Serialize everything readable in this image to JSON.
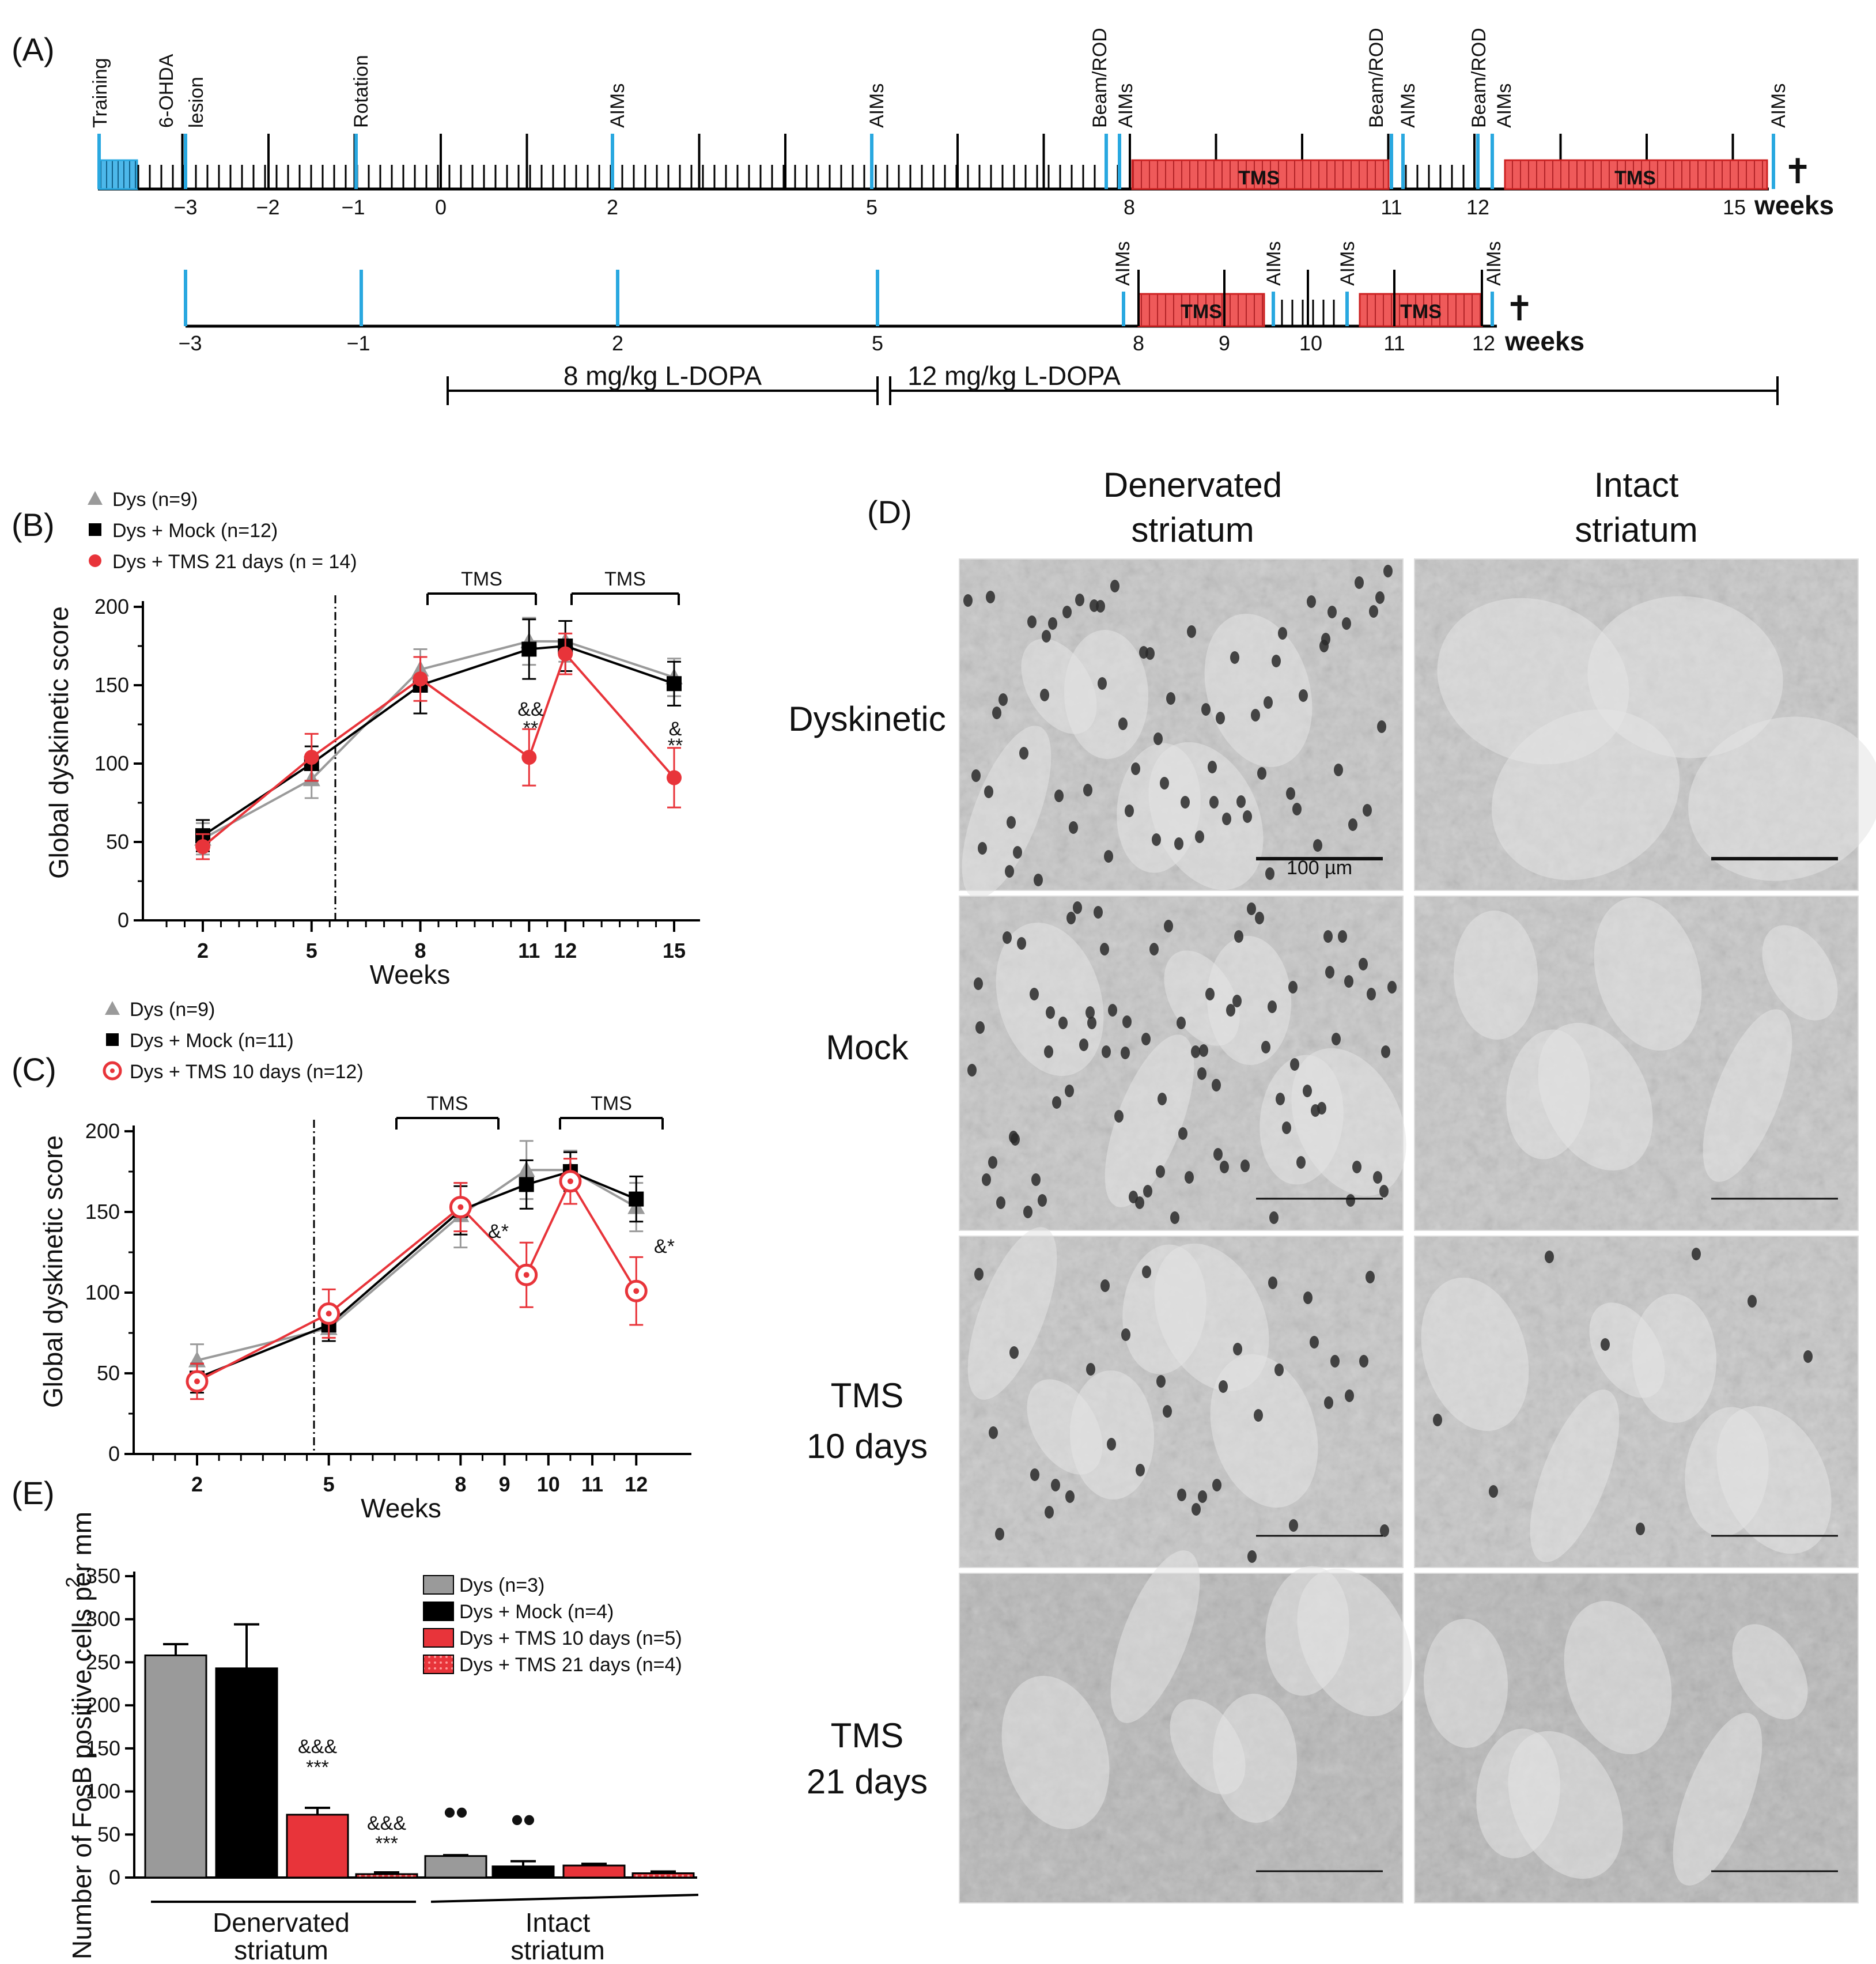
{
  "panel_labels": {
    "a": "(A)",
    "b": "(B)",
    "c": "(C)",
    "d": "(D)",
    "e": "(E)"
  },
  "colors": {
    "blue": "#29a8e0",
    "red": "#e8343a",
    "pink": "#f08a8a",
    "grey": "#9a9a9a",
    "black": "#000000"
  },
  "timeline_a": {
    "events": [
      "Training",
      "6-OHDA",
      "lesion",
      "Rotation",
      "AIMs",
      "AIMs",
      "Beam/ROD",
      "AIMs",
      "Beam/ROD",
      "AIMs",
      "Beam/ROD",
      "AIMs",
      "AIMs"
    ],
    "ticks": [
      "−3",
      "−2",
      "−1",
      "0",
      "2",
      "5",
      "8",
      "11",
      "12",
      "15"
    ],
    "unit": "weeks",
    "tms": [
      "TMS",
      "TMS"
    ]
  },
  "timeline_b": {
    "events": [
      "AIMs",
      "AIMs",
      "AIMs",
      "AIMs"
    ],
    "ticks": [
      "−3",
      "−1",
      "2",
      "5",
      "8",
      "9",
      "10",
      "11",
      "12"
    ],
    "unit": "weeks",
    "tms": [
      "TMS",
      "TMS"
    ]
  },
  "doses": [
    "8 mg/kg L-DOPA",
    "12 mg/kg L-DOPA"
  ],
  "cross_symbol": "✝",
  "chart_data": [
    {
      "id": "B",
      "type": "line",
      "x": [
        2,
        5,
        8,
        11,
        12,
        15
      ],
      "x_ticks": [
        "2",
        "5",
        "8",
        "11",
        "12",
        "15"
      ],
      "ylabel": "Global dyskinetic score",
      "xlabel": "Weeks",
      "ylim": [
        0,
        200
      ],
      "y_ticks": [
        "0",
        "50",
        "100",
        "150",
        "200"
      ],
      "legend": [
        "Dys (n=9)",
        "Dys + Mock (n=12)",
        "Dys + TMS 21 days (n = 14)"
      ],
      "series": [
        {
          "name": "Dys (n=9)",
          "values": [
            52,
            90,
            160,
            178,
            178,
            155
          ],
          "errors": [
            10,
            12,
            13,
            15,
            13,
            12
          ]
        },
        {
          "name": "Dys + Mock (n=12)",
          "values": [
            54,
            100,
            150,
            173,
            175,
            151
          ],
          "errors": [
            10,
            11,
            18,
            19,
            16,
            14
          ]
        },
        {
          "name": "Dys + TMS 21 days (n = 14)",
          "values": [
            47,
            104,
            154,
            104,
            170,
            91
          ],
          "errors": [
            8,
            15,
            14,
            18,
            13,
            19
          ]
        }
      ],
      "brackets": [
        "TMS",
        "TMS"
      ],
      "annotations": [
        "&&",
        "**",
        "&",
        "**"
      ]
    },
    {
      "id": "C",
      "type": "line",
      "x_ticks": [
        "2",
        "5",
        "8",
        "9",
        "10",
        "11",
        "12"
      ],
      "x_positions": [
        2,
        5,
        8,
        9,
        10,
        11,
        12
      ],
      "x": [
        2,
        5,
        8,
        9.5,
        10.5,
        12
      ],
      "ylabel": "Global dyskinetic score",
      "xlabel": "Weeks",
      "ylim": [
        0,
        200
      ],
      "y_ticks": [
        "0",
        "50",
        "100",
        "150",
        "200"
      ],
      "legend": [
        "Dys (n=9)",
        "Dys + Mock (n=11)",
        "Dys + TMS 10 days (n=12)"
      ],
      "series": [
        {
          "name": "Dys (n=9)",
          "values": [
            58,
            78,
            148,
            176,
            176,
            153
          ],
          "errors": [
            10,
            8,
            20,
            18,
            12,
            15
          ]
        },
        {
          "name": "Dys + Mock (n=11)",
          "values": [
            47,
            80,
            151,
            167,
            175,
            158
          ],
          "errors": [
            9,
            10,
            15,
            15,
            12,
            14
          ]
        },
        {
          "name": "Dys + TMS 10 days (n=12)",
          "values": [
            45,
            87,
            153,
            111,
            169,
            101
          ],
          "errors": [
            11,
            15,
            15,
            20,
            14,
            21
          ]
        }
      ],
      "brackets": [
        "TMS",
        "TMS"
      ],
      "annotations": [
        "&*",
        "&*"
      ]
    },
    {
      "id": "E",
      "type": "bar",
      "ylabel": "Number of FosB  positive cells per mm",
      "ylabel_sup": "2",
      "ylim": [
        0,
        350
      ],
      "y_ticks": [
        "0",
        "50",
        "100",
        "150",
        "200",
        "250",
        "300",
        "350"
      ],
      "groups": [
        "Denervated",
        "striatum",
        "Intact",
        "striatum"
      ],
      "legend": [
        "Dys (n=3)",
        "Dys + Mock (n=4)",
        "Dys + TMS 10 days (n=5)",
        "Dys + TMS 21 days (n=4)"
      ],
      "series": [
        {
          "name": "Dys (n=3)",
          "values": [
            258,
            25
          ],
          "errors": [
            13,
            1
          ]
        },
        {
          "name": "Dys + Mock (n=4)",
          "values": [
            243,
            13
          ],
          "errors": [
            51,
            6
          ]
        },
        {
          "name": "Dys + TMS 10 days (n=5)",
          "values": [
            73,
            14
          ],
          "errors": [
            8,
            2
          ]
        },
        {
          "name": "Dys + TMS 21 days (n=4)",
          "values": [
            4,
            5
          ],
          "errors": [
            2,
            2
          ]
        }
      ],
      "annotations": [
        "&&&",
        "***",
        "&&&",
        "***",
        "••",
        "••"
      ]
    }
  ],
  "micrographs": {
    "col_headers": [
      "Denervated",
      "striatum",
      "Intact",
      "striatum"
    ],
    "row_labels": [
      "Dyskinetic",
      "Mock",
      "TMS",
      "10 days",
      "TMS",
      "21 days"
    ],
    "scale_text": "100 µm"
  }
}
